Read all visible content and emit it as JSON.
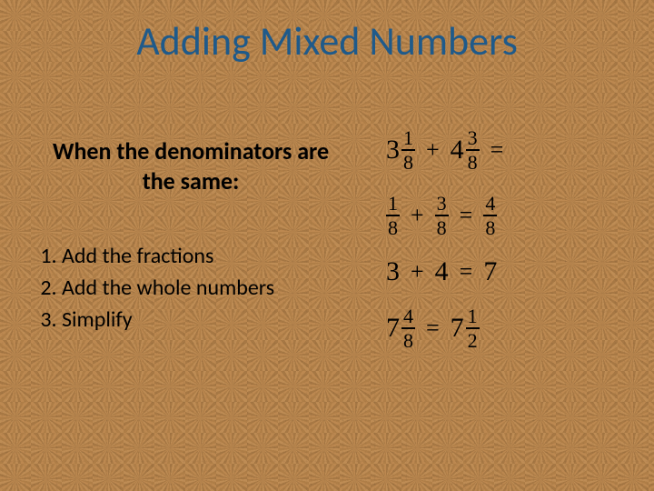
{
  "colors": {
    "title_color": "#1f5a8a",
    "body_text_color": "#000000",
    "math_color": "#000000",
    "background_base": "#b8864f"
  },
  "typography": {
    "title_fontsize": 44,
    "subtitle_fontsize": 26,
    "steps_fontsize": 24,
    "math_fontsize": 28,
    "title_weight": "400",
    "subtitle_weight": "700"
  },
  "title": "Adding Mixed Numbers",
  "subtitle": "When the denominators are the same:",
  "steps": [
    "Add the fractions",
    "Add the whole numbers",
    "Simplify"
  ],
  "equations": {
    "line1": {
      "a_whole": "3",
      "a_num": "1",
      "a_den": "8",
      "op": "+",
      "b_whole": "4",
      "b_num": "3",
      "b_den": "8",
      "eq": "="
    },
    "line2": {
      "a_num": "1",
      "a_den": "8",
      "op": "+",
      "b_num": "3",
      "b_den": "8",
      "eq": "=",
      "r_num": "4",
      "r_den": "8"
    },
    "line3": {
      "a": "3",
      "op": "+",
      "b": "4",
      "eq": "=",
      "r": "7"
    },
    "line4": {
      "a_whole": "7",
      "a_num": "4",
      "a_den": "8",
      "eq": "=",
      "b_whole": "7",
      "b_num": "1",
      "b_den": "2"
    }
  }
}
